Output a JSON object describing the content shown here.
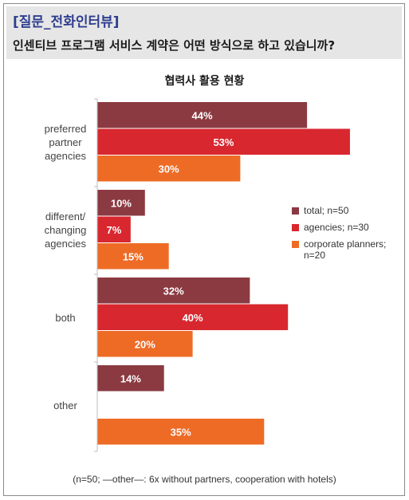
{
  "header": {
    "tag": "[질문_전화인터뷰]",
    "question": "인센티브 프로그램 서비스 계약은 어떤 방식으로 하고 있습니까?"
  },
  "chart_data": {
    "type": "bar",
    "orientation": "horizontal",
    "title": "협력사 활용 현황",
    "categories": [
      "preferred partner agencies",
      "different/ changing agencies",
      "both",
      "other"
    ],
    "category_lines": [
      [
        "preferred",
        "partner",
        "agencies"
      ],
      [
        "different/",
        "changing",
        "agencies"
      ],
      [
        "both"
      ],
      [
        "other"
      ]
    ],
    "series": [
      {
        "name": "total; n=50",
        "color": "#8b3a42",
        "values": [
          44,
          10,
          32,
          14
        ]
      },
      {
        "name": "agencies; n=30",
        "color": "#d8272f",
        "values": [
          53,
          7,
          40,
          null
        ]
      },
      {
        "name": "corporate planners; n=20",
        "color": "#ee6b26",
        "values": [
          30,
          15,
          20,
          35
        ]
      }
    ],
    "value_suffix": "%",
    "xlim": [
      0,
      55
    ],
    "grid": false,
    "legend_position": "right"
  },
  "legend": {
    "items": [
      {
        "label": "total; n=50",
        "color": "#8b3a42"
      },
      {
        "label": "agencies; n=30",
        "color": "#d8272f"
      },
      {
        "label": "corporate planners; n=20",
        "color": "#ee6b26"
      }
    ]
  },
  "footnote": "(n=50; —other—: 6x without partners, cooperation with hotels)"
}
